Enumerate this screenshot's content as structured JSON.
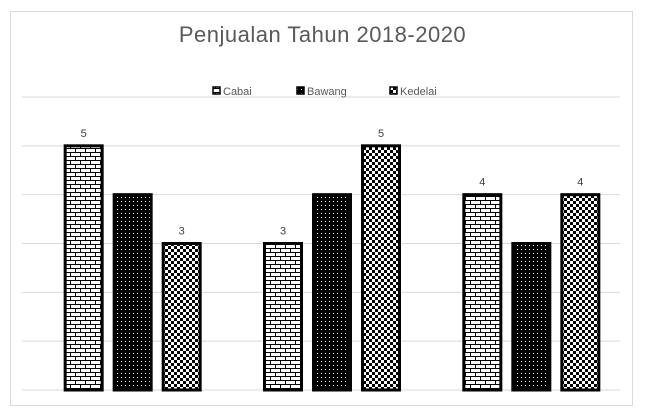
{
  "chart_data": {
    "type": "bar",
    "title": "Penjualan Tahun 2018-2020",
    "categories": [
      "",
      "",
      ""
    ],
    "series": [
      {
        "name": "Cabai",
        "values": [
          5,
          3,
          4
        ],
        "pattern": "brick",
        "show_labels": true
      },
      {
        "name": "Bawang",
        "values": [
          4,
          4,
          3
        ],
        "pattern": "dots",
        "show_labels": false
      },
      {
        "name": "Kedelai",
        "values": [
          3,
          5,
          4
        ],
        "pattern": "checker",
        "show_labels": true
      }
    ],
    "data_labels": [
      {
        "series": 0,
        "index": 0,
        "text": "5"
      },
      {
        "series": 2,
        "index": 0,
        "text": "3"
      },
      {
        "series": 0,
        "index": 1,
        "text": "3"
      },
      {
        "series": 2,
        "index": 1,
        "text": "5"
      },
      {
        "series": 0,
        "index": 2,
        "text": "4"
      },
      {
        "series": 2,
        "index": 2,
        "text": "4"
      }
    ],
    "ylim": [
      0,
      6
    ],
    "grid": true,
    "legend_position": "top-center",
    "colors": {
      "bar_border": "#000000",
      "grid": "#d9d9d9",
      "title": "#595959"
    }
  }
}
